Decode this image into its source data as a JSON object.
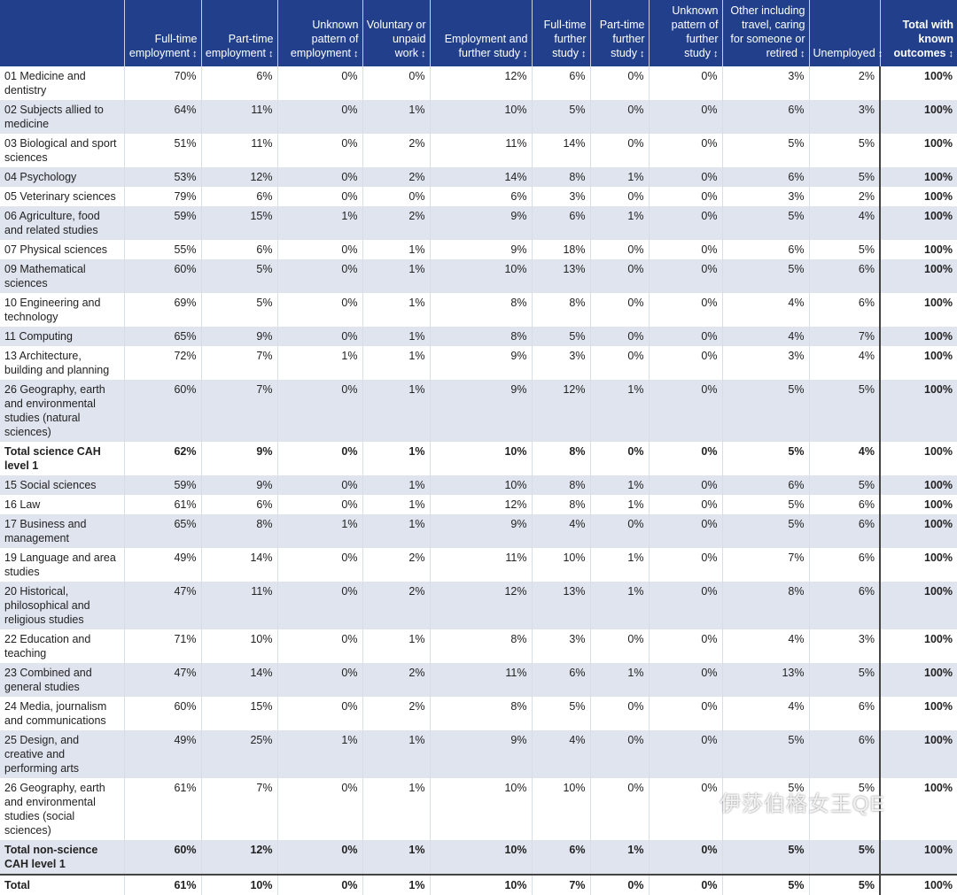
{
  "headers": [
    "",
    "Full-time employment",
    "Part-time employment",
    "Unknown pattern of employment",
    "Voluntary or unpaid work",
    "Employment and further study",
    "Full-time further study",
    "Part-time further study",
    "Unknown pattern of further study",
    "Other including travel, caring for someone or retired",
    "Unemployed",
    "Total with known outcomes"
  ],
  "sort_icon": "↕",
  "rows": [
    {
      "label": "01 Medicine and dentistry",
      "v": [
        "70%",
        "6%",
        "0%",
        "0%",
        "12%",
        "6%",
        "0%",
        "0%",
        "3%",
        "2%",
        "100%"
      ]
    },
    {
      "label": "02 Subjects allied to medicine",
      "v": [
        "64%",
        "11%",
        "0%",
        "1%",
        "10%",
        "5%",
        "0%",
        "0%",
        "6%",
        "3%",
        "100%"
      ]
    },
    {
      "label": "03 Biological and sport sciences",
      "v": [
        "51%",
        "11%",
        "0%",
        "2%",
        "11%",
        "14%",
        "0%",
        "0%",
        "5%",
        "5%",
        "100%"
      ]
    },
    {
      "label": "04 Psychology",
      "v": [
        "53%",
        "12%",
        "0%",
        "2%",
        "14%",
        "8%",
        "1%",
        "0%",
        "6%",
        "5%",
        "100%"
      ]
    },
    {
      "label": "05 Veterinary sciences",
      "v": [
        "79%",
        "6%",
        "0%",
        "0%",
        "6%",
        "3%",
        "0%",
        "0%",
        "3%",
        "2%",
        "100%"
      ]
    },
    {
      "label": "06 Agriculture, food and related studies",
      "v": [
        "59%",
        "15%",
        "1%",
        "2%",
        "9%",
        "6%",
        "1%",
        "0%",
        "5%",
        "4%",
        "100%"
      ]
    },
    {
      "label": "07 Physical sciences",
      "v": [
        "55%",
        "6%",
        "0%",
        "1%",
        "9%",
        "18%",
        "0%",
        "0%",
        "6%",
        "5%",
        "100%"
      ]
    },
    {
      "label": "09 Mathematical sciences",
      "v": [
        "60%",
        "5%",
        "0%",
        "1%",
        "10%",
        "13%",
        "0%",
        "0%",
        "5%",
        "6%",
        "100%"
      ]
    },
    {
      "label": "10 Engineering and technology",
      "v": [
        "69%",
        "5%",
        "0%",
        "1%",
        "8%",
        "8%",
        "0%",
        "0%",
        "4%",
        "6%",
        "100%"
      ]
    },
    {
      "label": "11 Computing",
      "v": [
        "65%",
        "9%",
        "0%",
        "1%",
        "8%",
        "5%",
        "0%",
        "0%",
        "4%",
        "7%",
        "100%"
      ]
    },
    {
      "label": "13 Architecture, building and planning",
      "v": [
        "72%",
        "7%",
        "1%",
        "1%",
        "9%",
        "3%",
        "0%",
        "0%",
        "3%",
        "4%",
        "100%"
      ]
    },
    {
      "label": "26 Geography, earth and environmental studies (natural sciences)",
      "v": [
        "60%",
        "7%",
        "0%",
        "1%",
        "9%",
        "12%",
        "1%",
        "0%",
        "5%",
        "5%",
        "100%"
      ]
    },
    {
      "label": "Total science CAH level 1",
      "bold": true,
      "v": [
        "62%",
        "9%",
        "0%",
        "1%",
        "10%",
        "8%",
        "0%",
        "0%",
        "5%",
        "4%",
        "100%"
      ]
    },
    {
      "label": "15 Social sciences",
      "v": [
        "59%",
        "9%",
        "0%",
        "1%",
        "10%",
        "8%",
        "1%",
        "0%",
        "6%",
        "5%",
        "100%"
      ]
    },
    {
      "label": "16 Law",
      "v": [
        "61%",
        "6%",
        "0%",
        "1%",
        "12%",
        "8%",
        "1%",
        "0%",
        "5%",
        "6%",
        "100%"
      ]
    },
    {
      "label": "17 Business and management",
      "v": [
        "65%",
        "8%",
        "1%",
        "1%",
        "9%",
        "4%",
        "0%",
        "0%",
        "5%",
        "6%",
        "100%"
      ]
    },
    {
      "label": "19 Language and area studies",
      "v": [
        "49%",
        "14%",
        "0%",
        "2%",
        "11%",
        "10%",
        "1%",
        "0%",
        "7%",
        "6%",
        "100%"
      ]
    },
    {
      "label": "20 Historical, philosophical and religious studies",
      "v": [
        "47%",
        "11%",
        "0%",
        "2%",
        "12%",
        "13%",
        "1%",
        "0%",
        "8%",
        "6%",
        "100%"
      ]
    },
    {
      "label": "22 Education and teaching",
      "v": [
        "71%",
        "10%",
        "0%",
        "1%",
        "8%",
        "3%",
        "0%",
        "0%",
        "4%",
        "3%",
        "100%"
      ]
    },
    {
      "label": "23 Combined and general studies",
      "v": [
        "47%",
        "14%",
        "0%",
        "2%",
        "11%",
        "6%",
        "1%",
        "0%",
        "13%",
        "5%",
        "100%"
      ]
    },
    {
      "label": "24 Media, journalism and communications",
      "v": [
        "60%",
        "15%",
        "0%",
        "2%",
        "8%",
        "5%",
        "0%",
        "0%",
        "4%",
        "6%",
        "100%"
      ]
    },
    {
      "label": "25 Design, and creative and performing arts",
      "v": [
        "49%",
        "25%",
        "1%",
        "1%",
        "9%",
        "4%",
        "0%",
        "0%",
        "5%",
        "6%",
        "100%"
      ]
    },
    {
      "label": "26 Geography, earth and environmental studies (social sciences)",
      "v": [
        "61%",
        "7%",
        "0%",
        "1%",
        "10%",
        "10%",
        "0%",
        "0%",
        "5%",
        "5%",
        "100%"
      ]
    },
    {
      "label": "Total non-science CAH level 1",
      "bold": true,
      "v": [
        "60%",
        "12%",
        "0%",
        "1%",
        "10%",
        "6%",
        "1%",
        "0%",
        "5%",
        "5%",
        "100%"
      ]
    },
    {
      "label": "Total",
      "bold": true,
      "grand": true,
      "v": [
        "61%",
        "10%",
        "0%",
        "1%",
        "10%",
        "7%",
        "0%",
        "0%",
        "5%",
        "5%",
        "100%"
      ]
    }
  ],
  "watermark": "伊莎伯格女王QE"
}
